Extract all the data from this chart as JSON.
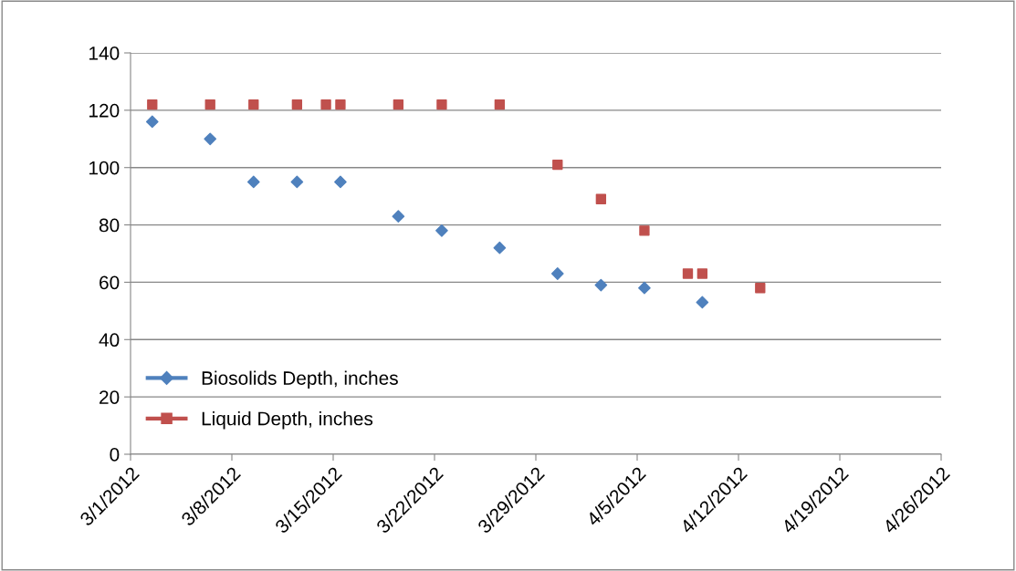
{
  "chart_data": {
    "type": "scatter",
    "xlim": [
      "2012-03-01",
      "2012-04-26"
    ],
    "xticks": [
      {
        "value": "2012-03-01",
        "label": "3/1/2012"
      },
      {
        "value": "2012-03-08",
        "label": "3/8/2012"
      },
      {
        "value": "2012-03-15",
        "label": "3/15/2012"
      },
      {
        "value": "2012-03-22",
        "label": "3/22/2012"
      },
      {
        "value": "2012-03-29",
        "label": "3/29/2012"
      },
      {
        "value": "2012-04-05",
        "label": "4/5/2012"
      },
      {
        "value": "2012-04-12",
        "label": "4/12/2012"
      },
      {
        "value": "2012-04-19",
        "label": "4/19/2012"
      },
      {
        "value": "2012-04-26",
        "label": "4/26/2012"
      }
    ],
    "ylim": [
      0,
      140
    ],
    "yticks": [
      0,
      20,
      40,
      60,
      80,
      100,
      120,
      140
    ],
    "grid": "y",
    "legend": "left",
    "series": [
      {
        "name": "Biosolids Depth, inches",
        "color": "#4f81bd",
        "marker": "diamond",
        "x": [
          "2012-03-02T12:00",
          "2012-03-06T12:00",
          "2012-03-09T12:00",
          "2012-03-12T12:00",
          "2012-03-15T12:00",
          "2012-03-19T12:00",
          "2012-03-22T12:00",
          "2012-03-26T12:00",
          "2012-03-30T12:00",
          "2012-04-02T12:00",
          "2012-04-05T12:00",
          "2012-04-09T12:00"
        ],
        "values": [
          116,
          110,
          95,
          95,
          95,
          83,
          78,
          72,
          63,
          59,
          58,
          53
        ]
      },
      {
        "name": "Liquid Depth, inches",
        "color": "#c0504d",
        "marker": "square",
        "x": [
          "2012-03-02T12:00",
          "2012-03-06T12:00",
          "2012-03-09T12:00",
          "2012-03-12T12:00",
          "2012-03-14T12:00",
          "2012-03-15T12:00",
          "2012-03-19T12:00",
          "2012-03-22T12:00",
          "2012-03-26T12:00",
          "2012-03-30T12:00",
          "2012-04-02T12:00",
          "2012-04-05T12:00",
          "2012-04-08T12:00",
          "2012-04-09T12:00",
          "2012-04-13T12:00"
        ],
        "values": [
          122,
          122,
          122,
          122,
          122,
          122,
          122,
          122,
          122,
          101,
          89,
          78,
          63,
          63,
          58
        ]
      }
    ]
  }
}
